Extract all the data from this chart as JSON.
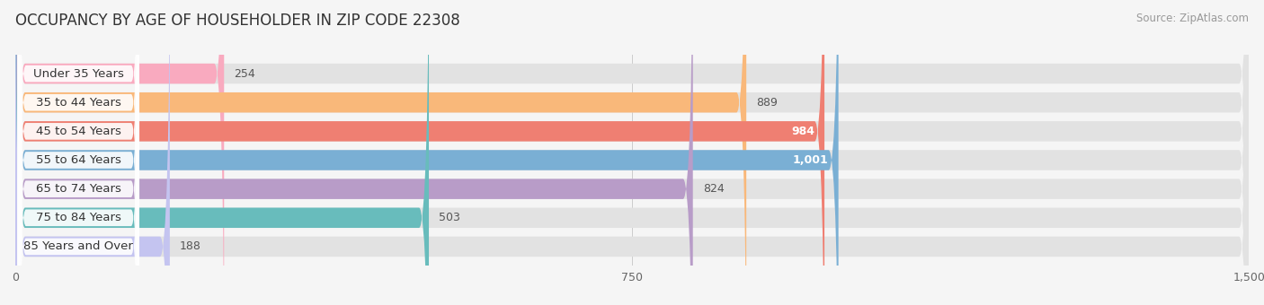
{
  "title": "OCCUPANCY BY AGE OF HOUSEHOLDER IN ZIP CODE 22308",
  "source": "Source: ZipAtlas.com",
  "categories": [
    "Under 35 Years",
    "35 to 44 Years",
    "45 to 54 Years",
    "55 to 64 Years",
    "65 to 74 Years",
    "75 to 84 Years",
    "85 Years and Over"
  ],
  "values": [
    254,
    889,
    984,
    1001,
    824,
    503,
    188
  ],
  "bar_colors": [
    "#F9AABF",
    "#F9B87A",
    "#EF7F72",
    "#7AAFD4",
    "#B89CC8",
    "#68BCBC",
    "#C4C4F0"
  ],
  "bar_label_colors": [
    "#444444",
    "#444444",
    "#ffffff",
    "#ffffff",
    "#444444",
    "#444444",
    "#444444"
  ],
  "value_inside": [
    false,
    false,
    true,
    true,
    false,
    false,
    false
  ],
  "xlim": [
    0,
    1500
  ],
  "xticks": [
    0,
    750,
    1500
  ],
  "background_color": "#f5f5f5",
  "bar_bg_color": "#e2e2e2",
  "title_fontsize": 12,
  "label_fontsize": 9.5,
  "value_fontsize": 9
}
